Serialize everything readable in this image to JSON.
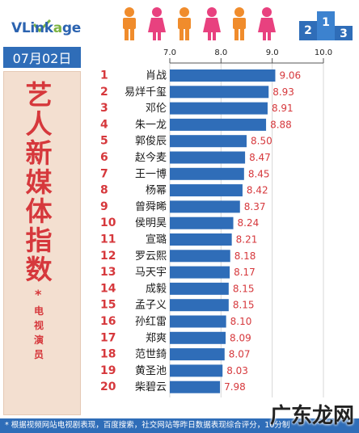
{
  "header": {
    "logo_prefix": "VLink",
    "logo_mid": "a",
    "logo_suffix": "ge",
    "podium_numbers": [
      "2",
      "1",
      "3"
    ]
  },
  "date": "07月02日",
  "side_title": [
    "艺",
    "人",
    "新",
    "媒",
    "体",
    "指",
    "数"
  ],
  "side_star": "*",
  "side_subtitle": [
    "电",
    "视",
    "演",
    "员"
  ],
  "footer_text": "* 根据视频网站电视剧表现，百度搜索，社交网站等昨日数据表现综合评分，10分制",
  "watermark_text": "广东龙网",
  "colors": {
    "bar": "#2f6db8",
    "rank": "#d6383c",
    "value": "#d6383c",
    "name": "#1a1a1a",
    "axis_tick": "#222222"
  },
  "chart_data": {
    "type": "bar",
    "orientation": "horizontal",
    "xlim": [
      7.0,
      10.0
    ],
    "ticks": [
      "7.0",
      "8.0",
      "9.0",
      "10.0"
    ],
    "grid": true,
    "ranks": [
      "1",
      "2",
      "3",
      "4",
      "5",
      "6",
      "7",
      "8",
      "9",
      "10",
      "11",
      "12",
      "13",
      "14",
      "15",
      "16",
      "17",
      "18",
      "19",
      "20"
    ],
    "categories": [
      "肖战",
      "易烊千玺",
      "邓伦",
      "朱一龙",
      "郭俊辰",
      "赵今麦",
      "王一博",
      "杨幂",
      "曾舜晞",
      "侯明昊",
      "宣璐",
      "罗云熙",
      "马天宇",
      "成毅",
      "孟子义",
      "孙红雷",
      "郑爽",
      "范世錡",
      "黄圣池",
      "柴碧云"
    ],
    "values": [
      9.06,
      8.93,
      8.91,
      8.88,
      8.5,
      8.47,
      8.45,
      8.42,
      8.37,
      8.24,
      8.21,
      8.18,
      8.17,
      8.15,
      8.15,
      8.1,
      8.09,
      8.07,
      8.03,
      7.98
    ],
    "value_labels": [
      "9.06",
      "8.93",
      "8.91",
      "8.88",
      "8.50",
      "8.47",
      "8.45",
      "8.42",
      "8.37",
      "8.24",
      "8.21",
      "8.18",
      "8.17",
      "8.15",
      "8.15",
      "8.10",
      "8.09",
      "8.07",
      "8.03",
      "7.98"
    ]
  }
}
